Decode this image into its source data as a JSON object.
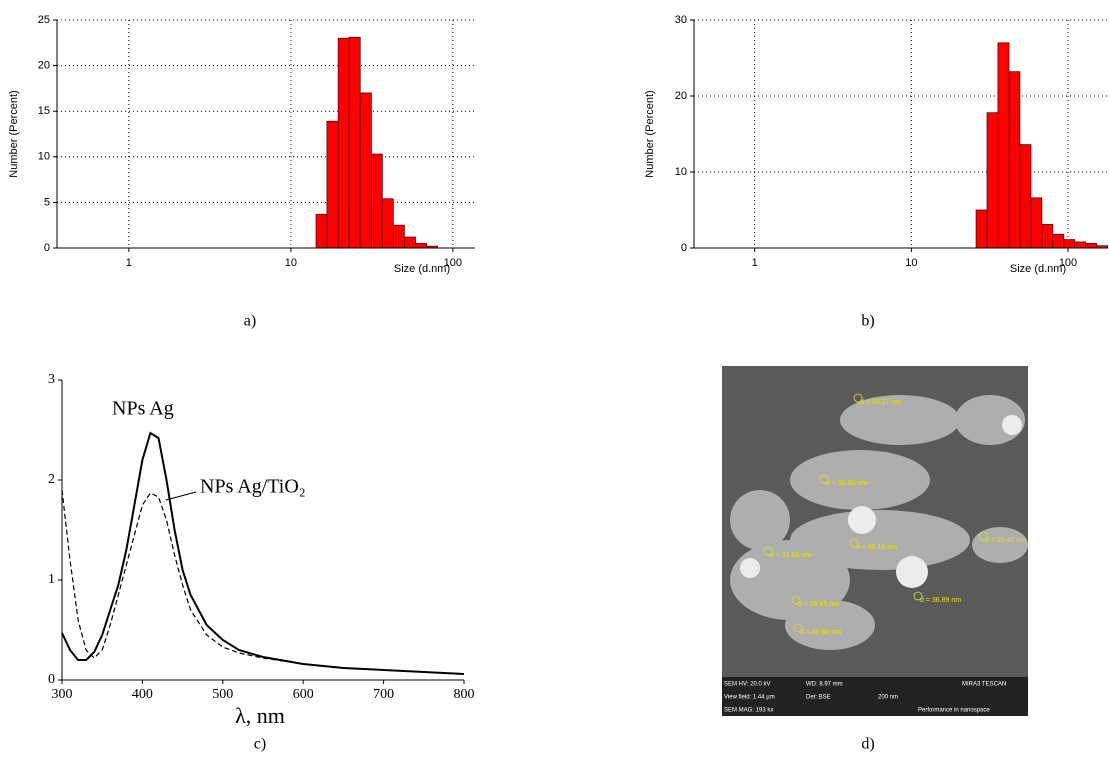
{
  "chart_data": [
    {
      "type": "histogram",
      "caption": "a)",
      "xlabel": "Size (d.nm)",
      "ylabel": "Number (Percent)",
      "log_x": true,
      "grid": true,
      "color": "#ff0000",
      "bins": [
        14.3,
        16.7,
        19.6,
        22.9,
        26.8,
        31.4,
        36.7,
        42.9,
        50.2,
        58.8,
        68.8,
        80.5
      ],
      "values": [
        3.7,
        13.9,
        23.0,
        23.1,
        17.0,
        10.3,
        5.4,
        2.5,
        1.2,
        0.5,
        0.2
      ],
      "xlim": [
        0.36,
        137
      ],
      "xticks": [
        1,
        10,
        100
      ],
      "ylim": [
        0,
        25
      ],
      "yticks": [
        0,
        5,
        10,
        15,
        20,
        25
      ]
    },
    {
      "type": "histogram",
      "caption": "b)",
      "xlabel": "Size (d.nm)",
      "ylabel": "Number (Percent)",
      "log_x": true,
      "grid": true,
      "color": "#ff0000",
      "bins": [
        25.9,
        30.4,
        35.7,
        42.0,
        49.3,
        58.0,
        68.1,
        80.0,
        94.0,
        110.5,
        129.8,
        152.5,
        179.2
      ],
      "values": [
        5.0,
        17.8,
        27.0,
        23.2,
        13.6,
        6.6,
        3.1,
        1.8,
        1.1,
        0.8,
        0.6,
        0.3
      ],
      "xlim": [
        0.41,
        180
      ],
      "xticks": [
        1,
        10,
        100
      ],
      "ylim": [
        0,
        30
      ],
      "yticks": [
        0,
        10,
        20,
        30
      ]
    },
    {
      "type": "line",
      "caption": "c)",
      "xlabel": "λ, nm",
      "grid": false,
      "x": [
        300,
        310,
        320,
        330,
        340,
        350,
        360,
        370,
        380,
        390,
        400,
        410,
        420,
        430,
        440,
        450,
        460,
        480,
        500,
        520,
        550,
        600,
        650,
        700,
        750,
        800
      ],
      "series": [
        {
          "name": "NPs Ag",
          "color": "#000000",
          "dash": "solid",
          "values": [
            0.47,
            0.3,
            0.2,
            0.2,
            0.28,
            0.45,
            0.7,
            0.95,
            1.3,
            1.75,
            2.2,
            2.47,
            2.42,
            2.0,
            1.5,
            1.1,
            0.85,
            0.55,
            0.4,
            0.3,
            0.23,
            0.16,
            0.12,
            0.1,
            0.08,
            0.06
          ]
        },
        {
          "name": "NPs Ag/TiO₂",
          "color": "#000000",
          "dash": "dashed",
          "values": [
            1.9,
            1.2,
            0.6,
            0.3,
            0.22,
            0.3,
            0.55,
            0.85,
            1.15,
            1.45,
            1.75,
            1.87,
            1.83,
            1.6,
            1.25,
            0.95,
            0.7,
            0.45,
            0.33,
            0.27,
            0.22,
            0.16,
            0.12,
            0.1,
            0.08,
            0.06
          ]
        }
      ],
      "xlim": [
        300,
        800
      ],
      "xticks": [
        300,
        400,
        500,
        600,
        700,
        800
      ],
      "ylim": [
        0,
        3
      ],
      "yticks": [
        0,
        1,
        2,
        3
      ]
    }
  ],
  "figure_d": {
    "caption": "d)",
    "measurements": [
      "d = 50.27 nm",
      "d = 30.90 nm",
      "d = 45.16 nm",
      "d = 20.42 nm",
      "d = 31.95 nm",
      "d = 36.89 nm",
      "d = 29.85 nm",
      "d = 30.80 nm"
    ],
    "footer": [
      "SEM HV: 20.0 kV",
      "WD: 8.97 mm",
      "MIRA3 TESCAN",
      "View field: 1.44 µm",
      "Det: BSE",
      "200 nm",
      "SEM MAG: 193 kx",
      "Performance in nanospace"
    ]
  }
}
